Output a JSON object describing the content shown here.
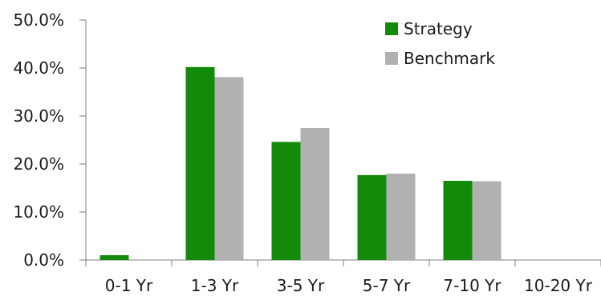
{
  "chart_data": {
    "type": "bar",
    "categories": [
      "0-1 Yr",
      "1-3 Yr",
      "3-5 Yr",
      "5-7 Yr",
      "7-10 Yr",
      "10-20 Yr"
    ],
    "series": [
      {
        "name": "Strategy",
        "values": [
          1.0,
          40.2,
          24.6,
          17.7,
          16.5,
          0.0
        ],
        "color": "#138a09"
      },
      {
        "name": "Benchmark",
        "values": [
          0.0,
          38.1,
          27.5,
          18.0,
          16.4,
          0.0
        ],
        "color": "#b1b1b1"
      }
    ],
    "ylim": [
      0,
      50
    ],
    "y_tick_step": 10,
    "y_tick_format": "percent-1dp",
    "y_tick_labels": [
      "0.0%",
      "10.0%",
      "20.0%",
      "30.0%",
      "40.0%",
      "50.0%"
    ],
    "grid": false,
    "legend_position": "top-right",
    "title": "",
    "xlabel": "",
    "ylabel": ""
  }
}
